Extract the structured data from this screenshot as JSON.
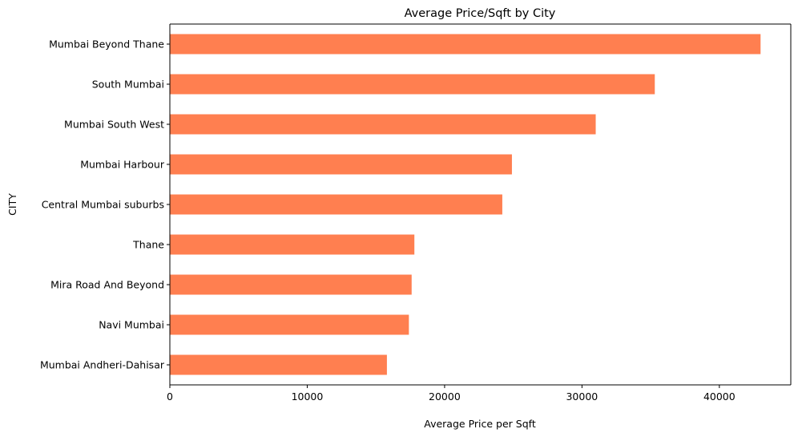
{
  "chart_data": {
    "type": "bar",
    "orientation": "horizontal",
    "title": "Average Price/Sqft by City",
    "xlabel": "Average Price per Sqft",
    "ylabel": "CITY",
    "categories": [
      "Mumbai Beyond Thane",
      "South Mumbai",
      "Mumbai South West",
      "Mumbai Harbour",
      "Central Mumbai suburbs",
      "Thane",
      "Mira Road And Beyond",
      "Navi Mumbai",
      "Mumbai Andheri-Dahisar"
    ],
    "values": [
      43000,
      35300,
      31000,
      24900,
      24200,
      17800,
      17600,
      17400,
      15800
    ],
    "xlim": [
      0,
      45200
    ],
    "xticks": [
      0,
      10000,
      20000,
      30000,
      40000
    ],
    "grid": false,
    "bar_color": "#ff7f50"
  }
}
